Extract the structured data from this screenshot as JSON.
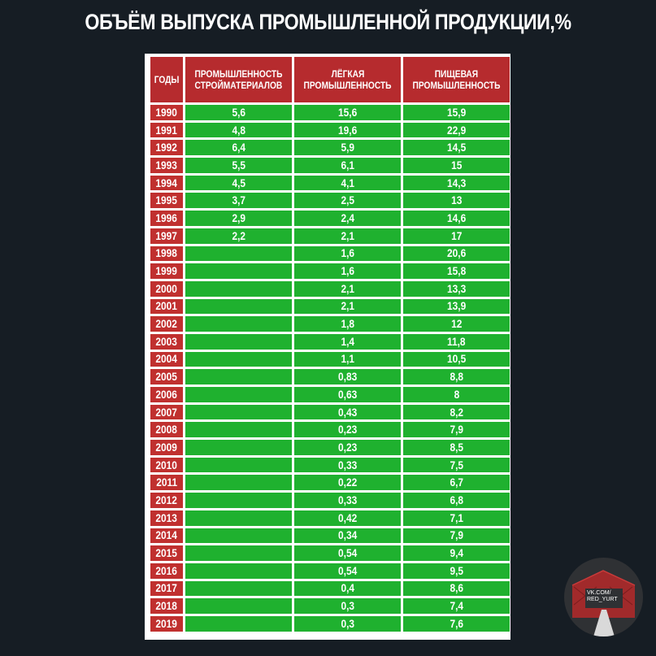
{
  "chart_data": {
    "type": "table",
    "title": "ОБЪЁМ ВЫПУСКА ПРОМЫШЛЕННОЙ ПРОДУКЦИИ,%",
    "columns": [
      {
        "line1": "ГОДЫ",
        "line2": ""
      },
      {
        "line1": "ПРОМЫШЛЕННОСТЬ",
        "line2": "СТРОЙМАТЕРИАЛОВ"
      },
      {
        "line1": "ЛЁГКАЯ",
        "line2": "ПРОМЫШЛЕННОСТЬ"
      },
      {
        "line1": "ПИЩЕВАЯ",
        "line2": "ПРОМЫШЛЕННОСТЬ"
      }
    ],
    "rows": [
      [
        "1990",
        "5,6",
        "15,6",
        "15,9"
      ],
      [
        "1991",
        "4,8",
        "19,6",
        "22,9"
      ],
      [
        "1992",
        "6,4",
        "5,9",
        "14,5"
      ],
      [
        "1993",
        "5,5",
        "6,1",
        "15"
      ],
      [
        "1994",
        "4,5",
        "4,1",
        "14,3"
      ],
      [
        "1995",
        "3,7",
        "2,5",
        "13"
      ],
      [
        "1996",
        "2,9",
        "2,4",
        "14,6"
      ],
      [
        "1997",
        "2,2",
        "2,1",
        "17"
      ],
      [
        "1998",
        "",
        "1,6",
        "20,6"
      ],
      [
        "1999",
        "",
        "1,6",
        "15,8"
      ],
      [
        "2000",
        "",
        "2,1",
        "13,3"
      ],
      [
        "2001",
        "",
        "2,1",
        "13,9"
      ],
      [
        "2002",
        "",
        "1,8",
        "12"
      ],
      [
        "2003",
        "",
        "1,4",
        "11,8"
      ],
      [
        "2004",
        "",
        "1,1",
        "10,5"
      ],
      [
        "2005",
        "",
        "0,83",
        "8,8"
      ],
      [
        "2006",
        "",
        "0,63",
        "8"
      ],
      [
        "2007",
        "",
        "0,43",
        "8,2"
      ],
      [
        "2008",
        "",
        "0,23",
        "7,9"
      ],
      [
        "2009",
        "",
        "0,23",
        "8,5"
      ],
      [
        "2010",
        "",
        "0,33",
        "7,5"
      ],
      [
        "2011",
        "",
        "0,22",
        "6,7"
      ],
      [
        "2012",
        "",
        "0,33",
        "6,8"
      ],
      [
        "2013",
        "",
        "0,42",
        "7,1"
      ],
      [
        "2014",
        "",
        "0,34",
        "7,9"
      ],
      [
        "2015",
        "",
        "0,54",
        "9,4"
      ],
      [
        "2016",
        "",
        "0,54",
        "9,5"
      ],
      [
        "2017",
        "",
        "0,4",
        "8,6"
      ],
      [
        "2018",
        "",
        "0,3",
        "7,4"
      ],
      [
        "2019",
        "",
        "0,3",
        "7,6"
      ]
    ]
  },
  "colors": {
    "background": "#161d24",
    "header_red": "#b62b2e",
    "year_red": "#c0302f",
    "cell_green": "#1fb12f",
    "grid_white": "#ffffff"
  },
  "logo": {
    "icon": "yurt-logo-icon",
    "line1": "VK.COM/",
    "line2": "RED_YURT"
  }
}
